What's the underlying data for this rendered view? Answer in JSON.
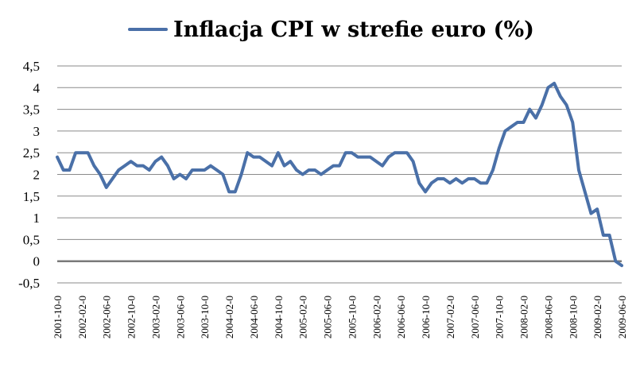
{
  "chart_data": {
    "type": "line",
    "legend": {
      "label": "Inflacja CPI w strefie euro (%)",
      "position": "top"
    },
    "series": [
      {
        "name": "Inflacja CPI w strefie euro (%)",
        "color": "#4a70a8",
        "values": [
          2.4,
          2.1,
          2.1,
          2.5,
          2.5,
          2.5,
          2.2,
          2.0,
          1.7,
          1.9,
          2.1,
          2.2,
          2.3,
          2.2,
          2.2,
          2.1,
          2.3,
          2.4,
          2.2,
          1.9,
          2.0,
          1.9,
          2.1,
          2.1,
          2.1,
          2.2,
          2.1,
          2.0,
          1.6,
          1.6,
          2.0,
          2.5,
          2.4,
          2.4,
          2.3,
          2.2,
          2.5,
          2.2,
          2.3,
          2.1,
          2.0,
          2.1,
          2.1,
          2.0,
          2.1,
          2.2,
          2.2,
          2.5,
          2.5,
          2.4,
          2.4,
          2.4,
          2.3,
          2.2,
          2.4,
          2.5,
          2.5,
          2.5,
          2.3,
          1.8,
          1.6,
          1.8,
          1.9,
          1.9,
          1.8,
          1.9,
          1.8,
          1.9,
          1.9,
          1.8,
          1.8,
          2.1,
          2.6,
          3.0,
          3.1,
          3.2,
          3.2,
          3.5,
          3.3,
          3.6,
          4.0,
          4.1,
          3.8,
          3.6,
          3.2,
          2.1,
          1.6,
          1.1,
          1.2,
          0.6,
          0.6,
          0.0,
          -0.1
        ]
      }
    ],
    "x_tick_labels": [
      "2001-10-0",
      "2002-02-0",
      "2002-06-0",
      "2002-10-0",
      "2003-02-0",
      "2003-06-0",
      "2003-10-0",
      "2004-02-0",
      "2004-06-0",
      "2004-10-0",
      "2005-02-0",
      "2005-06-0",
      "2005-10-0",
      "2006-02-0",
      "2006-06-0",
      "2006-10-0",
      "2007-02-0",
      "2007-06-0",
      "2007-10-0",
      "2008-02-0",
      "2008-06-0",
      "2008-10-0",
      "2009-02-0",
      "2009-06-0"
    ],
    "x_tick_step": 4,
    "y_ticks": [
      "-0,5",
      "0",
      "0,5",
      "1",
      "1,5",
      "2",
      "2,5",
      "3",
      "3,5",
      "4",
      "4,5"
    ],
    "ylim": [
      -0.5,
      4.5
    ],
    "grid": "horizontal"
  }
}
